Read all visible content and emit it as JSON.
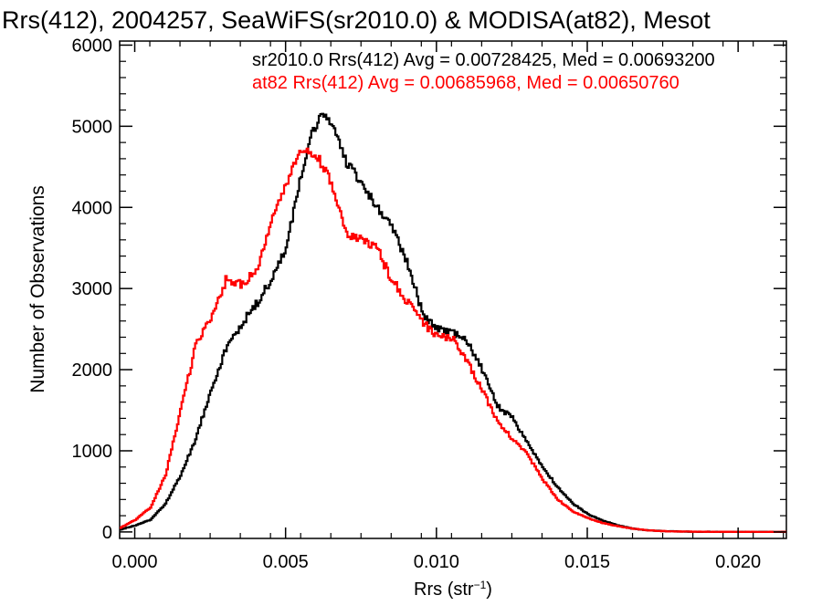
{
  "chart_data": {
    "type": "line",
    "title": "Rrs(412), 2004257, SeaWiFS(sr2010.0) & MODISA(at82), Mesot",
    "xlabel": "Rrs (str",
    "xlabel_sup": "−1",
    "xlabel_close": ")",
    "ylabel": "Number of Observations",
    "xlim": [
      -0.0005,
      0.0216
    ],
    "ylim": [
      -80,
      6050
    ],
    "xticks": [
      0.0,
      0.005,
      0.01,
      0.015,
      0.02
    ],
    "xtick_labels": [
      "0.000",
      "0.005",
      "0.010",
      "0.015",
      "0.020"
    ],
    "yticks": [
      0,
      1000,
      2000,
      3000,
      4000,
      5000,
      6000
    ],
    "ytick_labels": [
      "0",
      "1000",
      "2000",
      "3000",
      "4000",
      "5000",
      "6000"
    ],
    "grid": false,
    "series": [
      {
        "label": "sr2010.0 Rrs(412) Avg = 0.00728425, Med = 0.00693200",
        "color": "#000000",
        "points": [
          [
            -0.0005,
            30
          ],
          [
            0.0,
            80
          ],
          [
            0.0005,
            150
          ],
          [
            0.001,
            350
          ],
          [
            0.0015,
            700
          ],
          [
            0.002,
            1150
          ],
          [
            0.0025,
            1750
          ],
          [
            0.003,
            2250
          ],
          [
            0.0035,
            2550
          ],
          [
            0.004,
            2800
          ],
          [
            0.0045,
            3100
          ],
          [
            0.005,
            3500
          ],
          [
            0.0055,
            4400
          ],
          [
            0.0058,
            4900
          ],
          [
            0.006,
            5000
          ],
          [
            0.0062,
            5150
          ],
          [
            0.0065,
            5050
          ],
          [
            0.007,
            4550
          ],
          [
            0.0075,
            4300
          ],
          [
            0.008,
            4000
          ],
          [
            0.0085,
            3750
          ],
          [
            0.009,
            3350
          ],
          [
            0.0095,
            2700
          ],
          [
            0.01,
            2500
          ],
          [
            0.0105,
            2450
          ],
          [
            0.011,
            2350
          ],
          [
            0.0115,
            2000
          ],
          [
            0.012,
            1550
          ],
          [
            0.0125,
            1400
          ],
          [
            0.013,
            1100
          ],
          [
            0.0135,
            800
          ],
          [
            0.014,
            550
          ],
          [
            0.0145,
            350
          ],
          [
            0.015,
            220
          ],
          [
            0.0155,
            140
          ],
          [
            0.016,
            80
          ],
          [
            0.0165,
            40
          ],
          [
            0.017,
            20
          ],
          [
            0.0175,
            10
          ],
          [
            0.018,
            5
          ],
          [
            0.019,
            2
          ],
          [
            0.02,
            0
          ],
          [
            0.0216,
            0
          ]
        ]
      },
      {
        "label": "at82 Rrs(412) Avg = 0.00685968, Med = 0.00650760",
        "color": "#ff0000",
        "points": [
          [
            -0.0005,
            50
          ],
          [
            0.0,
            150
          ],
          [
            0.0005,
            300
          ],
          [
            0.001,
            700
          ],
          [
            0.0015,
            1500
          ],
          [
            0.002,
            2300
          ],
          [
            0.0025,
            2650
          ],
          [
            0.003,
            3100
          ],
          [
            0.0035,
            3050
          ],
          [
            0.004,
            3200
          ],
          [
            0.0045,
            3800
          ],
          [
            0.005,
            4300
          ],
          [
            0.0055,
            4700
          ],
          [
            0.006,
            4650
          ],
          [
            0.0065,
            4300
          ],
          [
            0.007,
            3650
          ],
          [
            0.0075,
            3600
          ],
          [
            0.008,
            3500
          ],
          [
            0.0085,
            3100
          ],
          [
            0.009,
            2850
          ],
          [
            0.0095,
            2600
          ],
          [
            0.01,
            2400
          ],
          [
            0.0105,
            2400
          ],
          [
            0.011,
            2100
          ],
          [
            0.0115,
            1750
          ],
          [
            0.012,
            1350
          ],
          [
            0.0125,
            1150
          ],
          [
            0.013,
            950
          ],
          [
            0.0135,
            650
          ],
          [
            0.014,
            400
          ],
          [
            0.0145,
            250
          ],
          [
            0.015,
            170
          ],
          [
            0.0155,
            110
          ],
          [
            0.016,
            70
          ],
          [
            0.0165,
            40
          ],
          [
            0.017,
            20
          ],
          [
            0.0175,
            10
          ],
          [
            0.018,
            5
          ],
          [
            0.019,
            2
          ],
          [
            0.02,
            0
          ],
          [
            0.0216,
            0
          ]
        ]
      }
    ]
  }
}
